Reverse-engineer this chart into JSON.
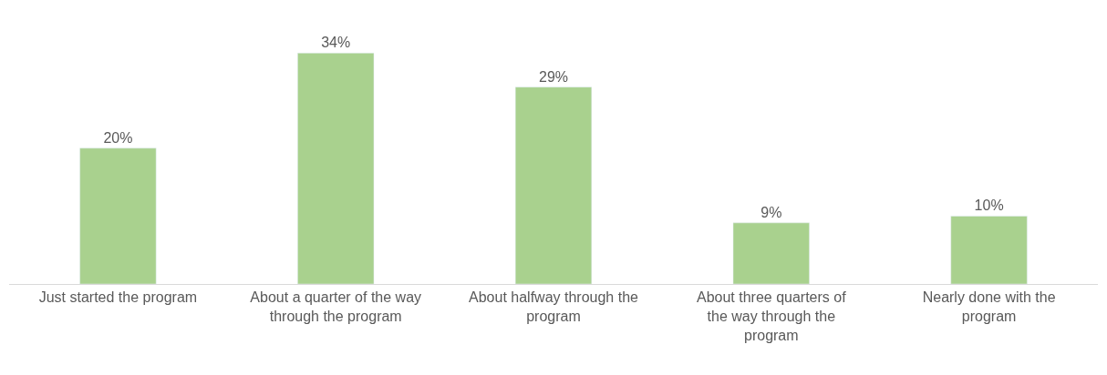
{
  "chart_data": {
    "type": "bar",
    "categories": [
      "Just started the program",
      "About a quarter of the way through the program",
      "About halfway through the program",
      "About three quarters of the way through the program",
      "Nearly done with the program"
    ],
    "values": [
      20,
      34,
      29,
      9,
      10
    ],
    "value_labels": [
      "20%",
      "34%",
      "29%",
      "9%",
      "10%"
    ],
    "color": "#a9d18e",
    "tick_labels": "x"
  }
}
